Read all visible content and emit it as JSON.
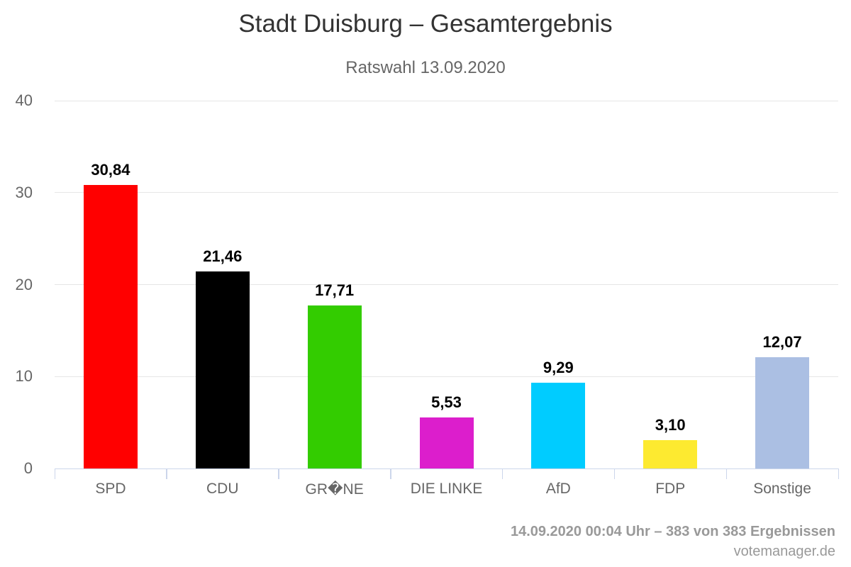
{
  "chart_data": {
    "type": "bar",
    "title": "Stadt Duisburg – Gesamtergebnis",
    "subtitle": "Ratswahl 13.09.2020",
    "categories": [
      "SPD",
      "CDU",
      "GR�NE",
      "DIE LINKE",
      "AfD",
      "FDP",
      "Sonstige"
    ],
    "values": [
      30.84,
      21.46,
      17.71,
      5.53,
      9.29,
      3.1,
      12.07
    ],
    "value_labels": [
      "30,84",
      "21,46",
      "17,71",
      "5,53",
      "9,29",
      "3,10",
      "12,07"
    ],
    "bar_colors": [
      "#FF0000",
      "#000000",
      "#33CC00",
      "#DC1ECC",
      "#00CCFF",
      "#FDEA30",
      "#ABBFE3"
    ],
    "xlabel": "",
    "ylabel": "",
    "ylim": [
      0,
      40
    ],
    "yticks": [
      0,
      10,
      20,
      30,
      40
    ],
    "grid": true,
    "legend": "none"
  },
  "footer": {
    "status": "14.09.2020 00:04 Uhr – 383 von 383 Ergebnissen",
    "credits": "votemanager.de"
  },
  "colors": {
    "grid": "#e6e6e6",
    "axis": "#ccd6eb",
    "title": "#333333",
    "subtitle": "#666666",
    "axis_label": "#666666",
    "data_label": "#000000",
    "footer": "#999999"
  }
}
